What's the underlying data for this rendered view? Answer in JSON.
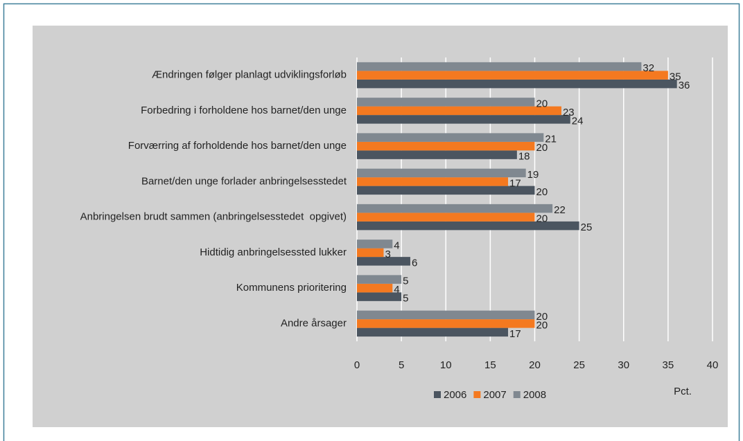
{
  "chart_data": {
    "type": "bar",
    "orientation": "horizontal",
    "categories": [
      "Ændringen følger planlagt udviklingsforløb",
      "Forbedring i forholdene hos barnet/den unge",
      "Forværring af forholdende hos barnet/den unge",
      "Barnet/den unge forlader anbringelsesstedet",
      "Anbringelsen brudt sammen (anbringelsesstedet  opgivet)",
      "Hidtidig anbringelsessted lukker",
      "Kommunens prioritering",
      "Andre årsager"
    ],
    "series": [
      {
        "name": "2006",
        "color": "#4b5560",
        "values": [
          36,
          24,
          18,
          20,
          25,
          6,
          5,
          17
        ]
      },
      {
        "name": "2007",
        "color": "#f47920",
        "values": [
          35,
          23,
          20,
          17,
          20,
          3,
          4,
          20
        ]
      },
      {
        "name": "2008",
        "color": "#808890",
        "values": [
          32,
          20,
          21,
          19,
          22,
          4,
          5,
          20
        ]
      }
    ],
    "xlim": [
      0,
      40
    ],
    "xticks": [
      0,
      5,
      10,
      15,
      20,
      25,
      30,
      35,
      40
    ],
    "xlabel": "Pct.",
    "grid": true,
    "legend": "bottom"
  }
}
